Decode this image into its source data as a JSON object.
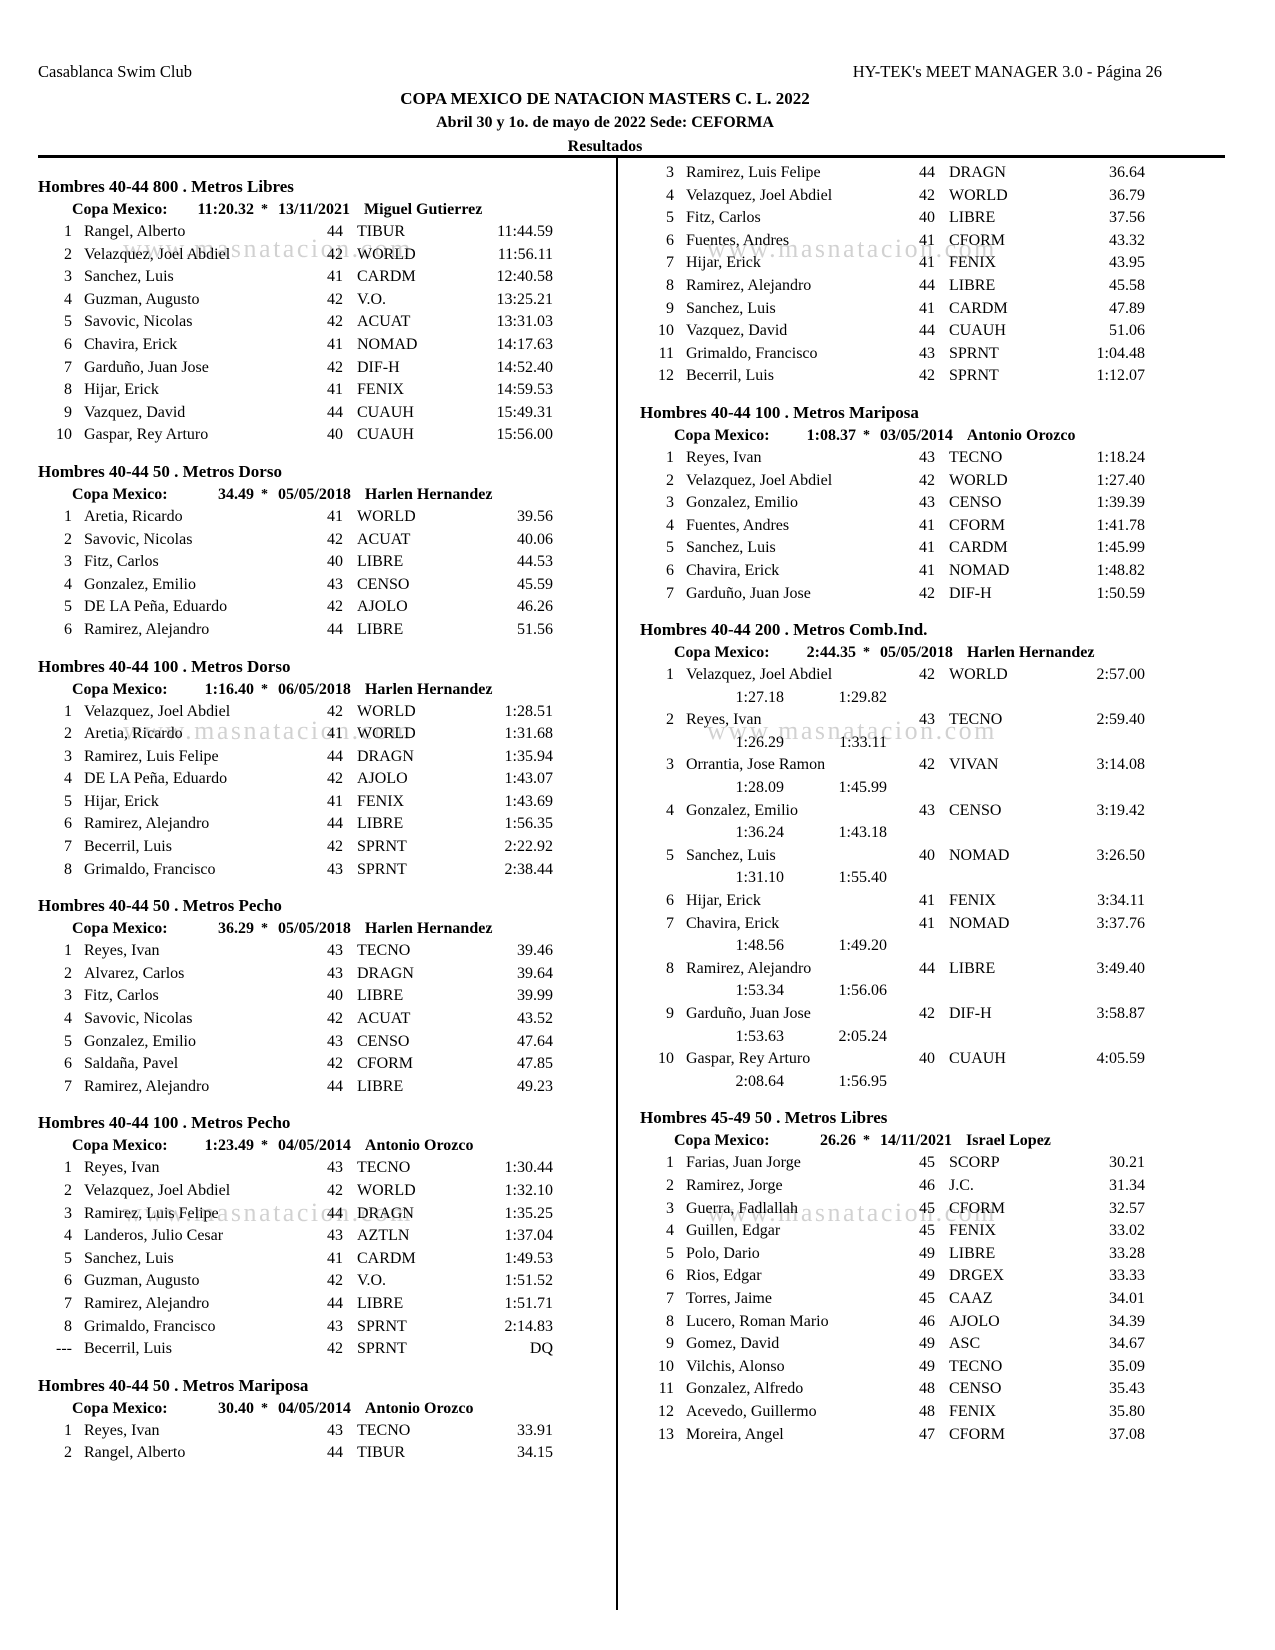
{
  "page": {
    "club": "Casablanca Swim Club",
    "manager": "HY-TEK's MEET MANAGER 3.0 - Página 26",
    "title": "COPA MEXICO DE NATACION MASTERS C. L. 2022",
    "subtitle": "Abril 30 y 1o. de mayo de 2022 Sede: CEFORMA",
    "results_label": "Resultados",
    "watermark": "www.masnatacion.com"
  },
  "left_column": {
    "sections": [
      {
        "title": "Hombres 40-44 800 . Metros Libres",
        "record": {
          "label": "Copa Mexico:",
          "time": "11:20.32",
          "star": "*",
          "date": "13/11/2021",
          "holder": "Miguel Gutierrez"
        },
        "rows": [
          {
            "place": "1",
            "name": "Rangel, Alberto",
            "age": "44",
            "team": "TIBUR",
            "time": "11:44.59"
          },
          {
            "place": "2",
            "name": "Velazquez, Joel Abdiel",
            "age": "42",
            "team": "WORLD",
            "time": "11:56.11"
          },
          {
            "place": "3",
            "name": "Sanchez, Luis",
            "age": "41",
            "team": "CARDM",
            "time": "12:40.58"
          },
          {
            "place": "4",
            "name": "Guzman, Augusto",
            "age": "42",
            "team": "V.O.",
            "time": "13:25.21"
          },
          {
            "place": "5",
            "name": "Savovic, Nicolas",
            "age": "42",
            "team": "ACUAT",
            "time": "13:31.03"
          },
          {
            "place": "6",
            "name": "Chavira, Erick",
            "age": "41",
            "team": "NOMAD",
            "time": "14:17.63"
          },
          {
            "place": "7",
            "name": "Garduño, Juan Jose",
            "age": "42",
            "team": "DIF-H",
            "time": "14:52.40"
          },
          {
            "place": "8",
            "name": "Hijar, Erick",
            "age": "41",
            "team": "FENIX",
            "time": "14:59.53"
          },
          {
            "place": "9",
            "name": "Vazquez, David",
            "age": "44",
            "team": "CUAUH",
            "time": "15:49.31"
          },
          {
            "place": "10",
            "name": "Gaspar, Rey Arturo",
            "age": "40",
            "team": "CUAUH",
            "time": "15:56.00"
          }
        ]
      },
      {
        "title": "Hombres 40-44 50 . Metros Dorso",
        "record": {
          "label": "Copa Mexico:",
          "time": "34.49",
          "star": "*",
          "date": "05/05/2018",
          "holder": "Harlen Hernandez"
        },
        "rows": [
          {
            "place": "1",
            "name": "Aretia, Ricardo",
            "age": "41",
            "team": "WORLD",
            "time": "39.56"
          },
          {
            "place": "2",
            "name": "Savovic, Nicolas",
            "age": "42",
            "team": "ACUAT",
            "time": "40.06"
          },
          {
            "place": "3",
            "name": "Fitz, Carlos",
            "age": "40",
            "team": "LIBRE",
            "time": "44.53"
          },
          {
            "place": "4",
            "name": "Gonzalez, Emilio",
            "age": "43",
            "team": "CENSO",
            "time": "45.59"
          },
          {
            "place": "5",
            "name": "DE LA Peña, Eduardo",
            "age": "42",
            "team": "AJOLO",
            "time": "46.26"
          },
          {
            "place": "6",
            "name": "Ramirez, Alejandro",
            "age": "44",
            "team": "LIBRE",
            "time": "51.56"
          }
        ]
      },
      {
        "title": "Hombres 40-44 100 . Metros Dorso",
        "record": {
          "label": "Copa Mexico:",
          "time": "1:16.40",
          "star": "*",
          "date": "06/05/2018",
          "holder": "Harlen Hernandez"
        },
        "rows": [
          {
            "place": "1",
            "name": "Velazquez, Joel Abdiel",
            "age": "42",
            "team": "WORLD",
            "time": "1:28.51"
          },
          {
            "place": "2",
            "name": "Aretia, Ricardo",
            "age": "41",
            "team": "WORLD",
            "time": "1:31.68"
          },
          {
            "place": "3",
            "name": "Ramirez, Luis Felipe",
            "age": "44",
            "team": "DRAGN",
            "time": "1:35.94"
          },
          {
            "place": "4",
            "name": "DE LA Peña, Eduardo",
            "age": "42",
            "team": "AJOLO",
            "time": "1:43.07"
          },
          {
            "place": "5",
            "name": "Hijar, Erick",
            "age": "41",
            "team": "FENIX",
            "time": "1:43.69"
          },
          {
            "place": "6",
            "name": "Ramirez, Alejandro",
            "age": "44",
            "team": "LIBRE",
            "time": "1:56.35"
          },
          {
            "place": "7",
            "name": "Becerril, Luis",
            "age": "42",
            "team": "SPRNT",
            "time": "2:22.92"
          },
          {
            "place": "8",
            "name": "Grimaldo, Francisco",
            "age": "43",
            "team": "SPRNT",
            "time": "2:38.44"
          }
        ]
      },
      {
        "title": "Hombres 40-44 50 . Metros Pecho",
        "record": {
          "label": "Copa Mexico:",
          "time": "36.29",
          "star": "*",
          "date": "05/05/2018",
          "holder": "Harlen Hernandez"
        },
        "rows": [
          {
            "place": "1",
            "name": "Reyes, Ivan",
            "age": "43",
            "team": "TECNO",
            "time": "39.46"
          },
          {
            "place": "2",
            "name": "Alvarez, Carlos",
            "age": "43",
            "team": "DRAGN",
            "time": "39.64"
          },
          {
            "place": "3",
            "name": "Fitz, Carlos",
            "age": "40",
            "team": "LIBRE",
            "time": "39.99"
          },
          {
            "place": "4",
            "name": "Savovic, Nicolas",
            "age": "42",
            "team": "ACUAT",
            "time": "43.52"
          },
          {
            "place": "5",
            "name": "Gonzalez, Emilio",
            "age": "43",
            "team": "CENSO",
            "time": "47.64"
          },
          {
            "place": "6",
            "name": "Saldaña, Pavel",
            "age": "42",
            "team": "CFORM",
            "time": "47.85"
          },
          {
            "place": "7",
            "name": "Ramirez, Alejandro",
            "age": "44",
            "team": "LIBRE",
            "time": "49.23"
          }
        ]
      },
      {
        "title": "Hombres 40-44 100 . Metros Pecho",
        "record": {
          "label": "Copa Mexico:",
          "time": "1:23.49",
          "star": "*",
          "date": "04/05/2014",
          "holder": "Antonio Orozco"
        },
        "rows": [
          {
            "place": "1",
            "name": "Reyes, Ivan",
            "age": "43",
            "team": "TECNO",
            "time": "1:30.44"
          },
          {
            "place": "2",
            "name": "Velazquez, Joel Abdiel",
            "age": "42",
            "team": "WORLD",
            "time": "1:32.10"
          },
          {
            "place": "3",
            "name": "Ramirez, Luis Felipe",
            "age": "44",
            "team": "DRAGN",
            "time": "1:35.25"
          },
          {
            "place": "4",
            "name": "Landeros, Julio Cesar",
            "age": "43",
            "team": "AZTLN",
            "time": "1:37.04"
          },
          {
            "place": "5",
            "name": "Sanchez, Luis",
            "age": "41",
            "team": "CARDM",
            "time": "1:49.53"
          },
          {
            "place": "6",
            "name": "Guzman, Augusto",
            "age": "42",
            "team": "V.O.",
            "time": "1:51.52"
          },
          {
            "place": "7",
            "name": "Ramirez, Alejandro",
            "age": "44",
            "team": "LIBRE",
            "time": "1:51.71"
          },
          {
            "place": "8",
            "name": "Grimaldo, Francisco",
            "age": "43",
            "team": "SPRNT",
            "time": "2:14.83"
          },
          {
            "place": "---",
            "name": "Becerril, Luis",
            "age": "42",
            "team": "SPRNT",
            "time": "DQ"
          }
        ]
      },
      {
        "title": "Hombres 40-44 50 . Metros Mariposa",
        "record": {
          "label": "Copa Mexico:",
          "time": "30.40",
          "star": "*",
          "date": "04/05/2014",
          "holder": "Antonio Orozco"
        },
        "rows": [
          {
            "place": "1",
            "name": "Reyes, Ivan",
            "age": "43",
            "team": "TECNO",
            "time": "33.91"
          },
          {
            "place": "2",
            "name": "Rangel, Alberto",
            "age": "44",
            "team": "TIBUR",
            "time": "34.15"
          }
        ]
      }
    ]
  },
  "right_column": {
    "continuation_rows": [
      {
        "place": "3",
        "name": "Ramirez, Luis Felipe",
        "age": "44",
        "team": "DRAGN",
        "time": "36.64"
      },
      {
        "place": "4",
        "name": "Velazquez, Joel Abdiel",
        "age": "42",
        "team": "WORLD",
        "time": "36.79"
      },
      {
        "place": "5",
        "name": "Fitz, Carlos",
        "age": "40",
        "team": "LIBRE",
        "time": "37.56"
      },
      {
        "place": "6",
        "name": "Fuentes, Andres",
        "age": "41",
        "team": "CFORM",
        "time": "43.32"
      },
      {
        "place": "7",
        "name": "Hijar, Erick",
        "age": "41",
        "team": "FENIX",
        "time": "43.95"
      },
      {
        "place": "8",
        "name": "Ramirez, Alejandro",
        "age": "44",
        "team": "LIBRE",
        "time": "45.58"
      },
      {
        "place": "9",
        "name": "Sanchez, Luis",
        "age": "41",
        "team": "CARDM",
        "time": "47.89"
      },
      {
        "place": "10",
        "name": "Vazquez, David",
        "age": "44",
        "team": "CUAUH",
        "time": "51.06"
      },
      {
        "place": "11",
        "name": "Grimaldo, Francisco",
        "age": "43",
        "team": "SPRNT",
        "time": "1:04.48"
      },
      {
        "place": "12",
        "name": "Becerril, Luis",
        "age": "42",
        "team": "SPRNT",
        "time": "1:12.07"
      }
    ],
    "sections": [
      {
        "title": "Hombres 40-44 100 . Metros Mariposa",
        "record": {
          "label": "Copa Mexico:",
          "time": "1:08.37",
          "star": "*",
          "date": "03/05/2014",
          "holder": "Antonio Orozco"
        },
        "rows": [
          {
            "place": "1",
            "name": "Reyes, Ivan",
            "age": "43",
            "team": "TECNO",
            "time": "1:18.24"
          },
          {
            "place": "2",
            "name": "Velazquez, Joel Abdiel",
            "age": "42",
            "team": "WORLD",
            "time": "1:27.40"
          },
          {
            "place": "3",
            "name": "Gonzalez, Emilio",
            "age": "43",
            "team": "CENSO",
            "time": "1:39.39"
          },
          {
            "place": "4",
            "name": "Fuentes, Andres",
            "age": "41",
            "team": "CFORM",
            "time": "1:41.78"
          },
          {
            "place": "5",
            "name": "Sanchez, Luis",
            "age": "41",
            "team": "CARDM",
            "time": "1:45.99"
          },
          {
            "place": "6",
            "name": "Chavira, Erick",
            "age": "41",
            "team": "NOMAD",
            "time": "1:48.82"
          },
          {
            "place": "7",
            "name": "Garduño, Juan Jose",
            "age": "42",
            "team": "DIF-H",
            "time": "1:50.59"
          }
        ]
      },
      {
        "title": "Hombres 40-44 200 . Metros Comb.Ind.",
        "record": {
          "label": "Copa Mexico:",
          "time": "2:44.35",
          "star": "*",
          "date": "05/05/2018",
          "holder": "Harlen Hernandez"
        },
        "rows": [
          {
            "place": "1",
            "name": "Velazquez, Joel Abdiel",
            "age": "42",
            "team": "WORLD",
            "time": "2:57.00",
            "splits": [
              "1:27.18",
              "1:29.82"
            ]
          },
          {
            "place": "2",
            "name": "Reyes, Ivan",
            "age": "43",
            "team": "TECNO",
            "time": "2:59.40",
            "splits": [
              "1:26.29",
              "1:33.11"
            ]
          },
          {
            "place": "3",
            "name": "Orrantia, Jose Ramon",
            "age": "42",
            "team": "VIVAN",
            "time": "3:14.08",
            "splits": [
              "1:28.09",
              "1:45.99"
            ]
          },
          {
            "place": "4",
            "name": "Gonzalez, Emilio",
            "age": "43",
            "team": "CENSO",
            "time": "3:19.42",
            "splits": [
              "1:36.24",
              "1:43.18"
            ]
          },
          {
            "place": "5",
            "name": "Sanchez, Luis",
            "age": "40",
            "team": "NOMAD",
            "time": "3:26.50",
            "splits": [
              "1:31.10",
              "1:55.40"
            ]
          },
          {
            "place": "6",
            "name": "Hijar, Erick",
            "age": "41",
            "team": "FENIX",
            "time": "3:34.11"
          },
          {
            "place": "7",
            "name": "Chavira, Erick",
            "age": "41",
            "team": "NOMAD",
            "time": "3:37.76",
            "splits": [
              "1:48.56",
              "1:49.20"
            ]
          },
          {
            "place": "8",
            "name": "Ramirez, Alejandro",
            "age": "44",
            "team": "LIBRE",
            "time": "3:49.40",
            "splits": [
              "1:53.34",
              "1:56.06"
            ]
          },
          {
            "place": "9",
            "name": "Garduño, Juan Jose",
            "age": "42",
            "team": "DIF-H",
            "time": "3:58.87",
            "splits": [
              "1:53.63",
              "2:05.24"
            ]
          },
          {
            "place": "10",
            "name": "Gaspar, Rey Arturo",
            "age": "40",
            "team": "CUAUH",
            "time": "4:05.59",
            "splits": [
              "2:08.64",
              "1:56.95"
            ]
          }
        ]
      },
      {
        "title": "Hombres 45-49 50 . Metros Libres",
        "record": {
          "label": "Copa Mexico:",
          "time": "26.26",
          "star": "*",
          "date": "14/11/2021",
          "holder": "Israel Lopez"
        },
        "rows": [
          {
            "place": "1",
            "name": "Farias, Juan Jorge",
            "age": "45",
            "team": "SCORP",
            "time": "30.21"
          },
          {
            "place": "2",
            "name": "Ramirez, Jorge",
            "age": "46",
            "team": "J.C.",
            "time": "31.34"
          },
          {
            "place": "3",
            "name": "Guerra, Fadlallah",
            "age": "45",
            "team": "CFORM",
            "time": "32.57"
          },
          {
            "place": "4",
            "name": "Guillen, Edgar",
            "age": "45",
            "team": "FENIX",
            "time": "33.02"
          },
          {
            "place": "5",
            "name": "Polo, Dario",
            "age": "49",
            "team": "LIBRE",
            "time": "33.28"
          },
          {
            "place": "6",
            "name": "Rios, Edgar",
            "age": "49",
            "team": "DRGEX",
            "time": "33.33"
          },
          {
            "place": "7",
            "name": "Torres, Jaime",
            "age": "45",
            "team": "CAAZ",
            "time": "34.01"
          },
          {
            "place": "8",
            "name": "Lucero, Roman Mario",
            "age": "46",
            "team": "AJOLO",
            "time": "34.39"
          },
          {
            "place": "9",
            "name": "Gomez, David",
            "age": "49",
            "team": "ASC",
            "time": "34.67"
          },
          {
            "place": "10",
            "name": "Vilchis, Alonso",
            "age": "49",
            "team": "TECNO",
            "time": "35.09"
          },
          {
            "place": "11",
            "name": "Gonzalez, Alfredo",
            "age": "48",
            "team": "CENSO",
            "time": "35.43"
          },
          {
            "place": "12",
            "name": "Acevedo, Guillermo",
            "age": "48",
            "team": "FENIX",
            "time": "35.80"
          },
          {
            "place": "13",
            "name": "Moreira, Angel",
            "age": "47",
            "team": "CFORM",
            "time": "37.08"
          }
        ]
      }
    ]
  }
}
